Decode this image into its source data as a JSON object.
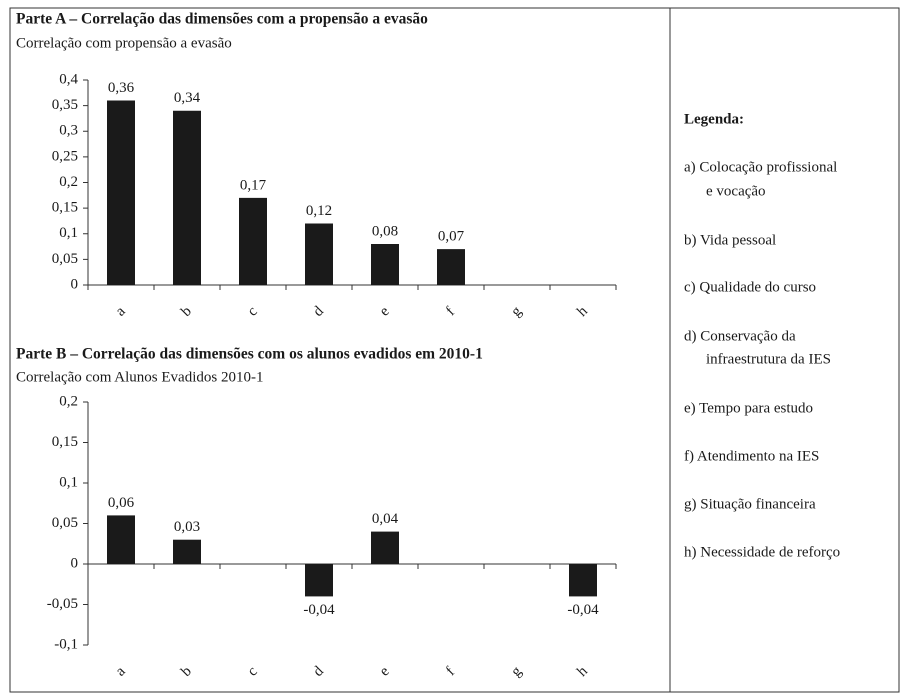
{
  "chart_data": [
    {
      "type": "bar",
      "title": "Parte A – Correlação das dimensões com a propensão a evasão",
      "subtitle": "Correlação com propensão a evasão",
      "categories": [
        "a",
        "b",
        "c",
        "d",
        "e",
        "f",
        "g",
        "h"
      ],
      "values": [
        0.36,
        0.34,
        0.17,
        0.12,
        0.08,
        0.07,
        null,
        null
      ],
      "value_labels": [
        "0,36",
        "0,34",
        "0,17",
        "0,12",
        "0,08",
        "0,07",
        null,
        null
      ],
      "color": "#1a1a1a",
      "ylim": [
        0,
        0.4
      ],
      "yticks": [
        0,
        {
          "value": 0.05,
          "label": "0,05"
        },
        {
          "value": 0.1,
          "label": "0,1"
        },
        {
          "value": 0.15,
          "label": "0,15"
        },
        {
          "value": 0.2,
          "label": "0,2"
        },
        {
          "value": 0.25,
          "label": "0,25"
        },
        {
          "value": 0.3,
          "label": "0,3"
        },
        {
          "value": 0.35,
          "label": "0,35"
        },
        {
          "value": 0.4,
          "label": "0,4"
        }
      ],
      "grid": false
    },
    {
      "type": "bar",
      "title": "Parte B – Correlação das dimensões com os alunos evadidos em 2010-1",
      "subtitle": "Correlação com Alunos Evadidos 2010-1",
      "categories": [
        "a",
        "b",
        "c",
        "d",
        "e",
        "f",
        "g",
        "h"
      ],
      "values": [
        0.06,
        0.03,
        null,
        -0.04,
        0.04,
        null,
        null,
        -0.04
      ],
      "value_labels": [
        "0,06",
        "0,03",
        null,
        "-0,04",
        "0,04",
        null,
        null,
        "-0,04"
      ],
      "color": "#1a1a1a",
      "ylim": [
        -0.1,
        0.2
      ],
      "yticks": [
        {
          "value": -0.1,
          "label": "-0,1"
        },
        {
          "value": -0.05,
          "label": "-0,05"
        },
        0,
        {
          "value": 0.05,
          "label": "0,05"
        },
        {
          "value": 0.1,
          "label": "0,1"
        },
        {
          "value": 0.15,
          "label": "0,15"
        },
        {
          "value": 0.2,
          "label": "0,2"
        }
      ],
      "grid": false
    }
  ],
  "legend": {
    "title": "Legenda:",
    "items": [
      [
        "a) Colocação profissional",
        "e vocação"
      ],
      [
        "b) Vida pessoal"
      ],
      [
        "c) Qualidade do curso"
      ],
      [
        "d) Conservação da",
        "infraestrutura da IES"
      ],
      [
        "e) Tempo para estudo"
      ],
      [
        "f) Atendimento na IES"
      ],
      [
        "g) Situação financeira"
      ],
      [
        "h) Necessidade de reforço"
      ]
    ]
  }
}
